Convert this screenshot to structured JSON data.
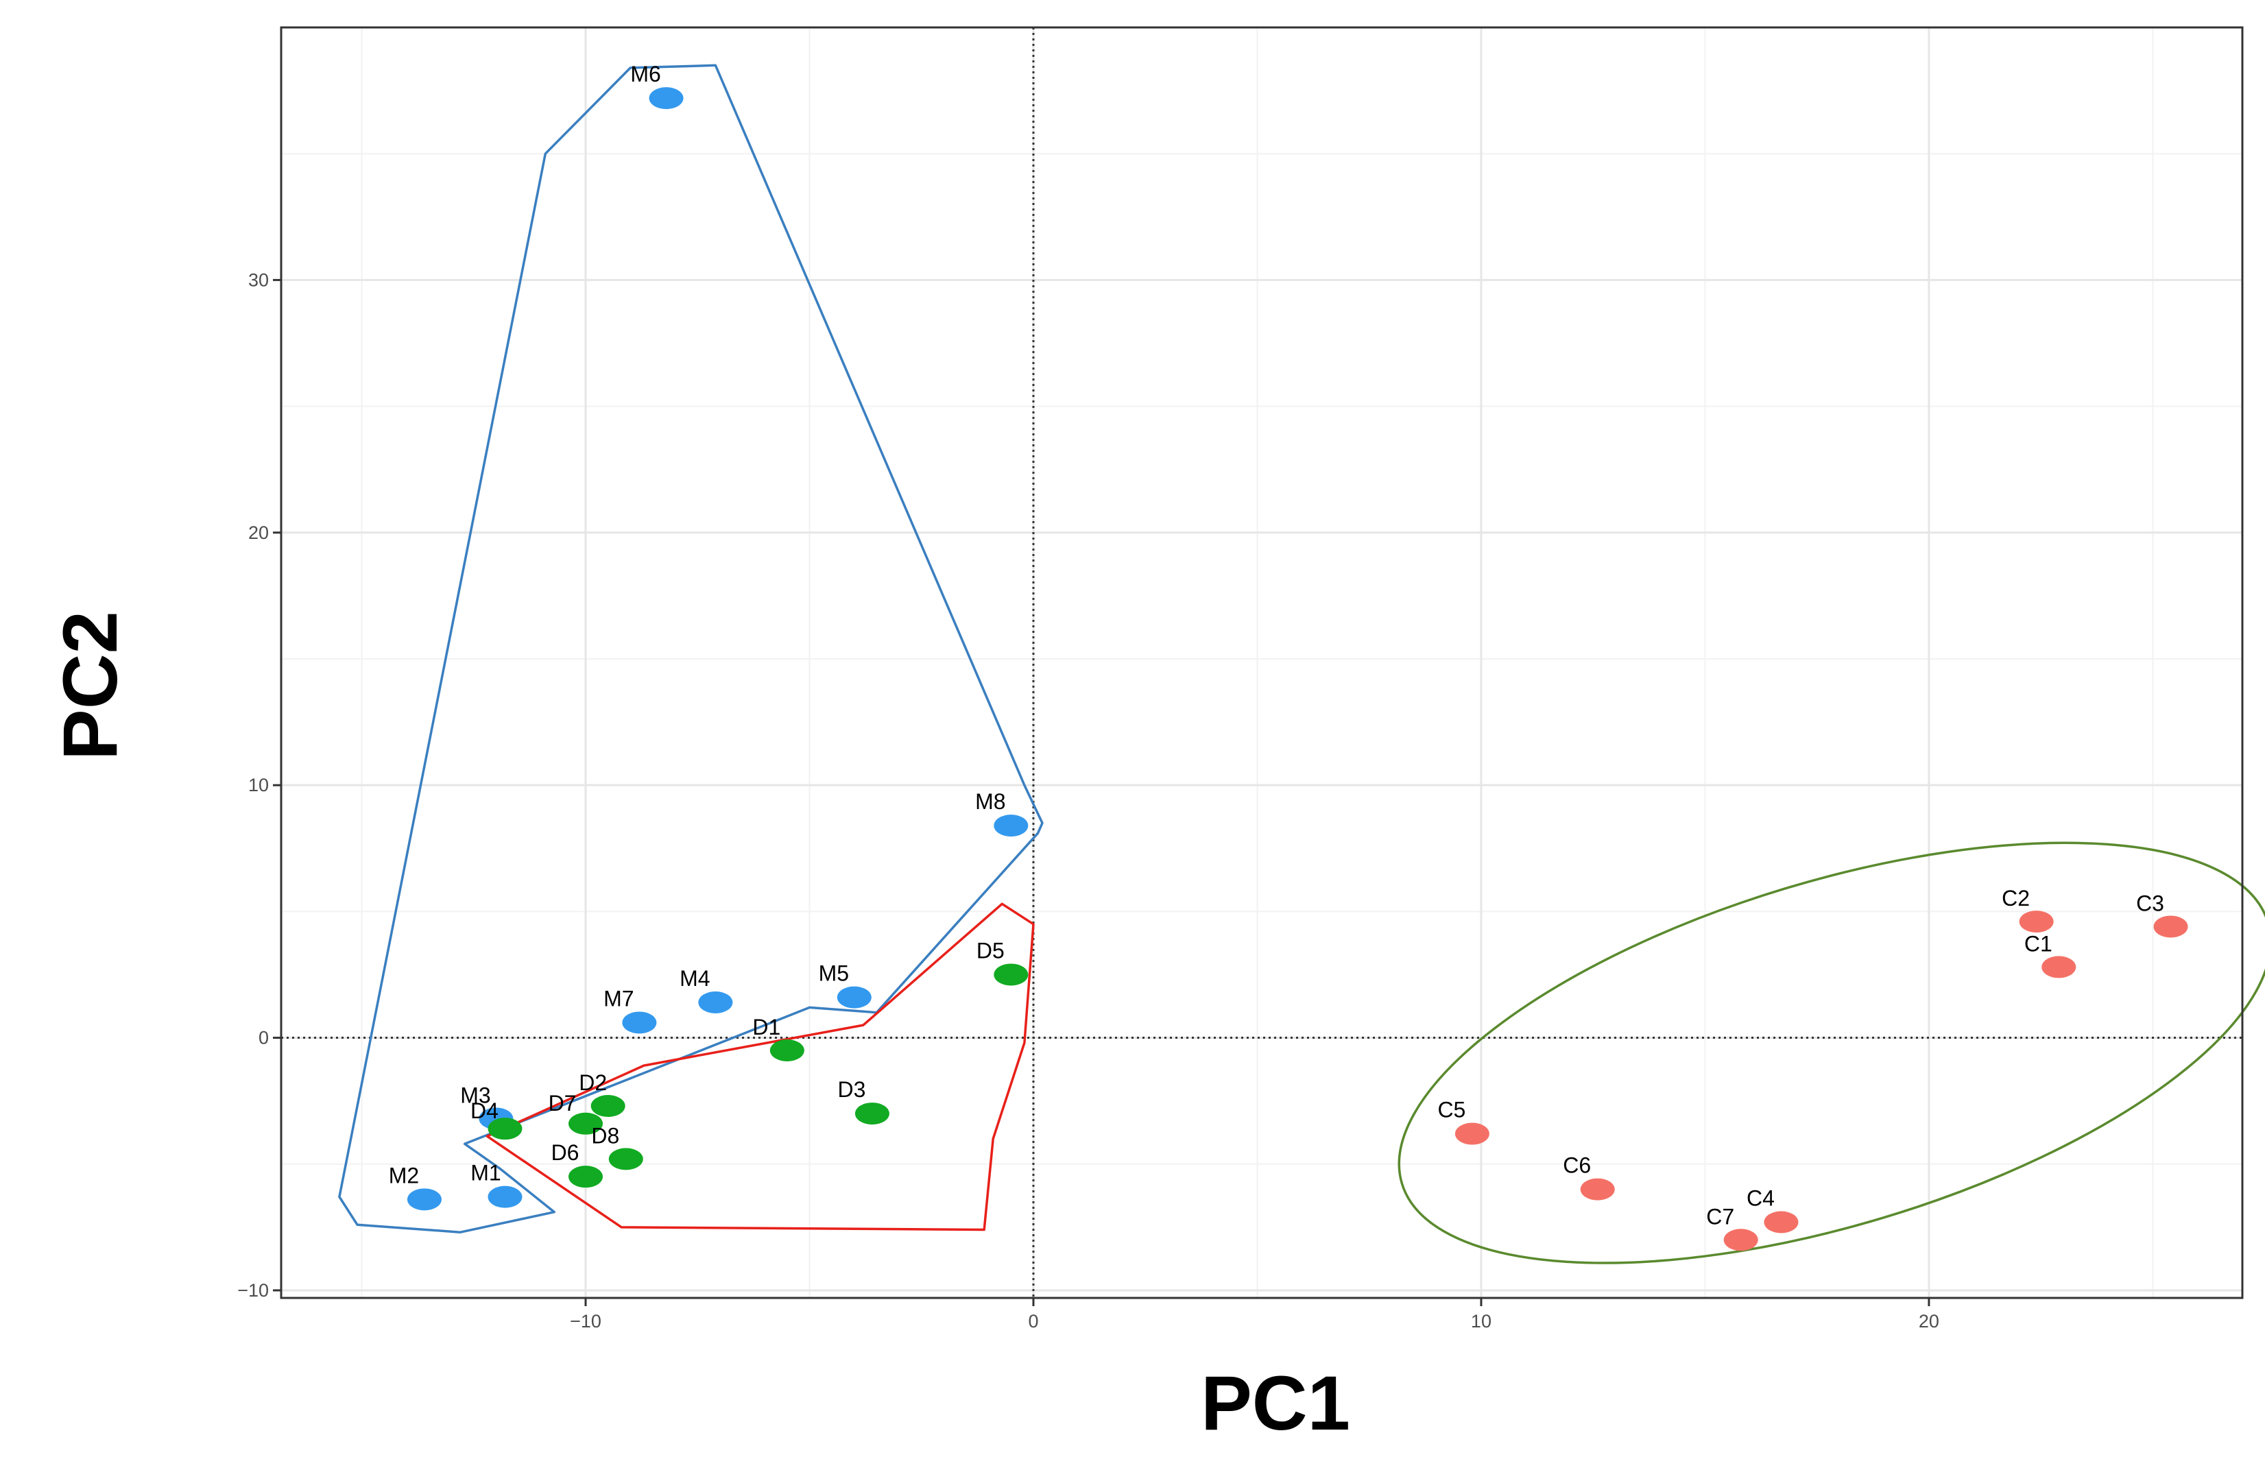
{
  "chart_data": {
    "type": "scatter",
    "title": "",
    "xlabel": "PC1",
    "ylabel": "PC2",
    "xlim": [
      -16.8,
      27
    ],
    "ylim": [
      -10.3,
      40
    ],
    "x_ticks": [
      -10,
      0,
      10,
      20
    ],
    "y_ticks": [
      -10,
      0,
      10,
      20,
      30
    ],
    "x_tick_labels": [
      "−10",
      "0",
      "10",
      "20"
    ],
    "y_tick_labels": [
      "−10",
      "0",
      "10",
      "20",
      "30"
    ],
    "grid": true,
    "reference_lines": {
      "x": 0,
      "y": 0,
      "style": "dotted"
    },
    "colors": {
      "M": "#3399ee",
      "D": "#11aa22",
      "C": "#f47066",
      "hull_M": "#3a7fc0",
      "hull_D": "#e8201a",
      "ellipse_C": "#5a8a2e"
    },
    "series": [
      {
        "name": "M",
        "color": "#3399ee",
        "points": [
          {
            "label": "M1",
            "x": -11.8,
            "y": -6.3
          },
          {
            "label": "M2",
            "x": -13.6,
            "y": -6.4
          },
          {
            "label": "M3",
            "x": -12.0,
            "y": -3.2
          },
          {
            "label": "M4",
            "x": -7.1,
            "y": 1.4
          },
          {
            "label": "M5",
            "x": -4.0,
            "y": 1.6
          },
          {
            "label": "M6",
            "x": -8.2,
            "y": 37.2
          },
          {
            "label": "M7",
            "x": -8.8,
            "y": 0.6
          },
          {
            "label": "M8",
            "x": -0.5,
            "y": 8.4
          }
        ]
      },
      {
        "name": "D",
        "color": "#11aa22",
        "points": [
          {
            "label": "D1",
            "x": -5.5,
            "y": -0.5
          },
          {
            "label": "D2",
            "x": -9.5,
            "y": -2.7
          },
          {
            "label": "D3",
            "x": -3.6,
            "y": -3.0
          },
          {
            "label": "D4",
            "x": -11.8,
            "y": -3.6
          },
          {
            "label": "D5",
            "x": -0.5,
            "y": 2.5
          },
          {
            "label": "D6",
            "x": -10.0,
            "y": -5.5
          },
          {
            "label": "D7",
            "x": -10.0,
            "y": -3.4
          },
          {
            "label": "D8",
            "x": -9.1,
            "y": -4.8
          }
        ]
      },
      {
        "name": "C",
        "color": "#f47066",
        "points": [
          {
            "label": "C1",
            "x": 22.9,
            "y": 2.8
          },
          {
            "label": "C2",
            "x": 22.4,
            "y": 4.6
          },
          {
            "label": "C3",
            "x": 25.4,
            "y": 4.4
          },
          {
            "label": "C4",
            "x": 16.7,
            "y": -7.3
          },
          {
            "label": "C5",
            "x": 9.8,
            "y": -3.8
          },
          {
            "label": "C6",
            "x": 12.6,
            "y": -6.0
          },
          {
            "label": "C7",
            "x": 15.8,
            "y": -8.0
          }
        ]
      }
    ],
    "hulls": [
      {
        "group": "M",
        "color": "#3a7fc0",
        "path": [
          [
            -15.5,
            -6.3
          ],
          [
            -15.1,
            -7.4
          ],
          [
            -12.8,
            -7.7
          ],
          [
            -10.7,
            -6.9
          ],
          [
            -11.9,
            -5.2
          ],
          [
            -12.7,
            -4.2
          ],
          [
            -5.0,
            1.2
          ],
          [
            -3.5,
            1.0
          ],
          [
            0.1,
            8.1
          ],
          [
            0.2,
            8.5
          ],
          [
            -0.2,
            10.0
          ],
          [
            -7.1,
            38.5
          ],
          [
            -9.0,
            38.4
          ],
          [
            -10.9,
            35.0
          ]
        ]
      },
      {
        "group": "D",
        "color": "#e8201a",
        "path": [
          [
            -12.2,
            -3.9
          ],
          [
            -9.2,
            -7.5
          ],
          [
            -1.1,
            -7.6
          ],
          [
            -0.9,
            -4.0
          ],
          [
            -0.2,
            -0.2
          ],
          [
            0.0,
            4.5
          ],
          [
            -0.7,
            5.3
          ],
          [
            -3.8,
            0.5
          ],
          [
            -8.7,
            -1.1
          ]
        ]
      }
    ],
    "ellipses": [
      {
        "group": "C",
        "color": "#5a8a2e",
        "center": [
          17.9,
          -0.6
        ],
        "rx": 10.1,
        "ry": 6.8,
        "angle_deg": -16.8
      }
    ]
  }
}
